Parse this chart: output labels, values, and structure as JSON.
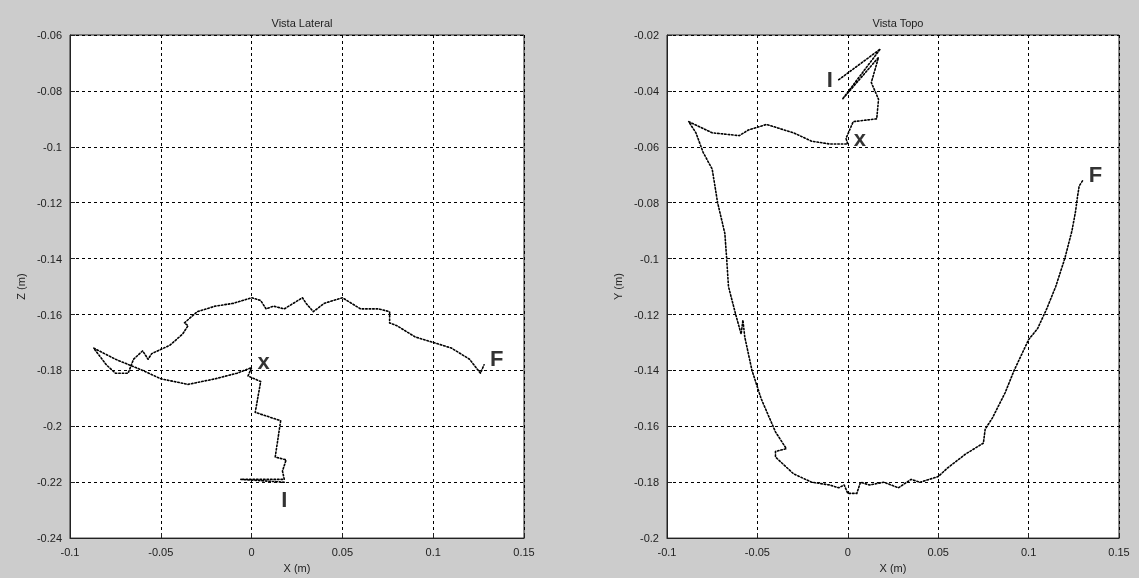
{
  "chart_data": [
    {
      "type": "line",
      "title": "Vista Lateral",
      "xlabel": "X (m)",
      "ylabel": "Z (m)",
      "xlim": [
        -0.1,
        0.15
      ],
      "xticks": [
        -0.1,
        -0.05,
        0,
        0.05,
        0.1,
        0.15
      ],
      "ylim": [
        -0.24,
        -0.06
      ],
      "yticks": [
        -0.24,
        -0.22,
        -0.2,
        -0.18,
        -0.16,
        -0.14,
        -0.12,
        -0.1,
        -0.08,
        -0.06
      ],
      "grid": true,
      "line_style": "dotted",
      "marker": "none",
      "series": [
        {
          "color": "#000000",
          "x": [
            0.018,
            -0.006,
            0.018,
            0.017,
            0.019,
            0.013,
            0.016,
            0.002,
            0.005,
            -0.002,
            0,
            -0.008,
            -0.02,
            -0.035,
            -0.05,
            -0.06,
            -0.075,
            -0.087,
            -0.08,
            -0.075,
            -0.068,
            -0.065,
            -0.06,
            -0.057,
            -0.055,
            -0.045,
            -0.038,
            -0.035,
            -0.037,
            -0.03,
            -0.02,
            -0.01,
            -0.005,
            0,
            0.005,
            0.008,
            0.012,
            0.018,
            0.023,
            0.028,
            0.03,
            0.034,
            0.04,
            0.05,
            0.055,
            0.06,
            0.07,
            0.076,
            0.076,
            0.08,
            0.09,
            0.1,
            0.11,
            0.12,
            0.126,
            0.128
          ],
          "values": [
            -0.22,
            -0.219,
            -0.219,
            -0.216,
            -0.212,
            -0.211,
            -0.198,
            -0.195,
            -0.184,
            -0.182,
            -0.179,
            -0.181,
            -0.183,
            -0.185,
            -0.183,
            -0.18,
            -0.176,
            -0.172,
            -0.178,
            -0.181,
            -0.181,
            -0.176,
            -0.173,
            -0.176,
            -0.174,
            -0.171,
            -0.167,
            -0.164,
            -0.163,
            -0.159,
            -0.157,
            -0.156,
            -0.155,
            -0.154,
            -0.155,
            -0.158,
            -0.157,
            -0.158,
            -0.156,
            -0.154,
            -0.156,
            -0.159,
            -0.156,
            -0.154,
            -0.156,
            -0.158,
            -0.158,
            -0.159,
            -0.163,
            -0.164,
            -0.168,
            -0.17,
            -0.172,
            -0.176,
            -0.181,
            -0.178
          ]
        }
      ],
      "annotations": [
        {
          "text": "x",
          "x": 0,
          "y": -0.179
        },
        {
          "text": "F",
          "x": 0.128,
          "y": -0.178
        },
        {
          "text": "I",
          "x": 0.018,
          "y": -0.22
        }
      ]
    },
    {
      "type": "line",
      "title": "Vista Topo",
      "xlabel": "X (m)",
      "ylabel": "Y (m)",
      "xlim": [
        -0.1,
        0.15
      ],
      "xticks": [
        -0.1,
        -0.05,
        0,
        0.05,
        0.1,
        0.15
      ],
      "ylim": [
        -0.2,
        -0.02
      ],
      "yticks": [
        -0.2,
        -0.18,
        -0.16,
        -0.14,
        -0.12,
        -0.1,
        -0.08,
        -0.06,
        -0.04,
        -0.02
      ],
      "grid": true,
      "line_style": "dotted",
      "marker": "none",
      "series": [
        {
          "color": "#000000",
          "x": [
            -0.005,
            0.018,
            -0.003,
            0.017,
            0.013,
            0.017,
            0.016,
            0.003,
            0.001,
            -0.001,
            0,
            -0.01,
            -0.02,
            -0.03,
            -0.045,
            -0.055,
            -0.06,
            -0.075,
            -0.088,
            -0.084,
            -0.08,
            -0.075,
            -0.072,
            -0.068,
            -0.067,
            -0.066,
            -0.062,
            -0.059,
            -0.058,
            -0.057,
            -0.053,
            -0.048,
            -0.04,
            -0.034,
            -0.04,
            -0.04,
            -0.03,
            -0.02,
            -0.01,
            -0.005,
            -0.002,
            0,
            0.005,
            0.007,
            0.012,
            0.02,
            0.028,
            0.035,
            0.04,
            0.05,
            0.055,
            0.065,
            0.075,
            0.076,
            0.08,
            0.087,
            0.092,
            0.1,
            0.105,
            0.11,
            0.115,
            0.12,
            0.124,
            0.126,
            0.127,
            0.128,
            0.13
          ],
          "values": [
            -0.036,
            -0.025,
            -0.043,
            -0.028,
            -0.037,
            -0.043,
            -0.05,
            -0.051,
            -0.054,
            -0.057,
            -0.059,
            -0.059,
            -0.058,
            -0.055,
            -0.052,
            -0.054,
            -0.056,
            -0.055,
            -0.051,
            -0.055,
            -0.062,
            -0.068,
            -0.08,
            -0.091,
            -0.1,
            -0.11,
            -0.12,
            -0.127,
            -0.122,
            -0.128,
            -0.14,
            -0.15,
            -0.162,
            -0.168,
            -0.169,
            -0.171,
            -0.177,
            -0.18,
            -0.181,
            -0.182,
            -0.181,
            -0.184,
            -0.184,
            -0.18,
            -0.181,
            -0.18,
            -0.182,
            -0.179,
            -0.18,
            -0.178,
            -0.175,
            -0.17,
            -0.166,
            -0.161,
            -0.157,
            -0.148,
            -0.14,
            -0.129,
            -0.125,
            -0.118,
            -0.11,
            -0.1,
            -0.09,
            -0.083,
            -0.078,
            -0.074,
            -0.072
          ]
        }
      ],
      "annotations": [
        {
          "text": "I",
          "x": -0.005,
          "y": -0.036
        },
        {
          "text": "x",
          "x": 0,
          "y": -0.059
        },
        {
          "text": "F",
          "x": 0.13,
          "y": -0.072
        }
      ]
    }
  ]
}
